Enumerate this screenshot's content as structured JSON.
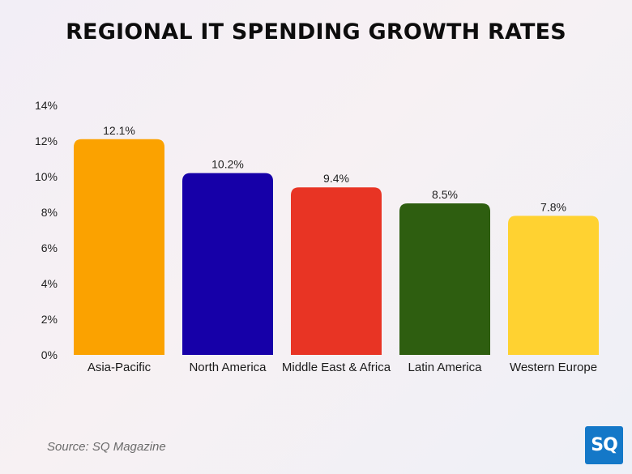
{
  "chart_data": {
    "type": "bar",
    "title": "REGIONAL IT SPENDING GROWTH RATES",
    "categories": [
      "Asia-Pacific",
      "North America",
      "Middle East & Africa",
      "Latin America",
      "Western Europe"
    ],
    "values": [
      12.1,
      10.2,
      9.4,
      8.5,
      7.8
    ],
    "data_labels": [
      "12.1%",
      "10.2%",
      "9.4%",
      "8.5%",
      "7.8%"
    ],
    "colors": [
      "#FBA200",
      "#1600A8",
      "#E83424",
      "#2E5E10",
      "#FFD231"
    ],
    "ylim": [
      0,
      14
    ],
    "yticks": [
      "0%",
      "2%",
      "4%",
      "6%",
      "8%",
      "10%",
      "12%",
      "14%"
    ],
    "xlabel": "",
    "ylabel": "",
    "grid": false,
    "legend": "none"
  },
  "source": "Source: SQ Magazine",
  "logo_text": "SQ"
}
